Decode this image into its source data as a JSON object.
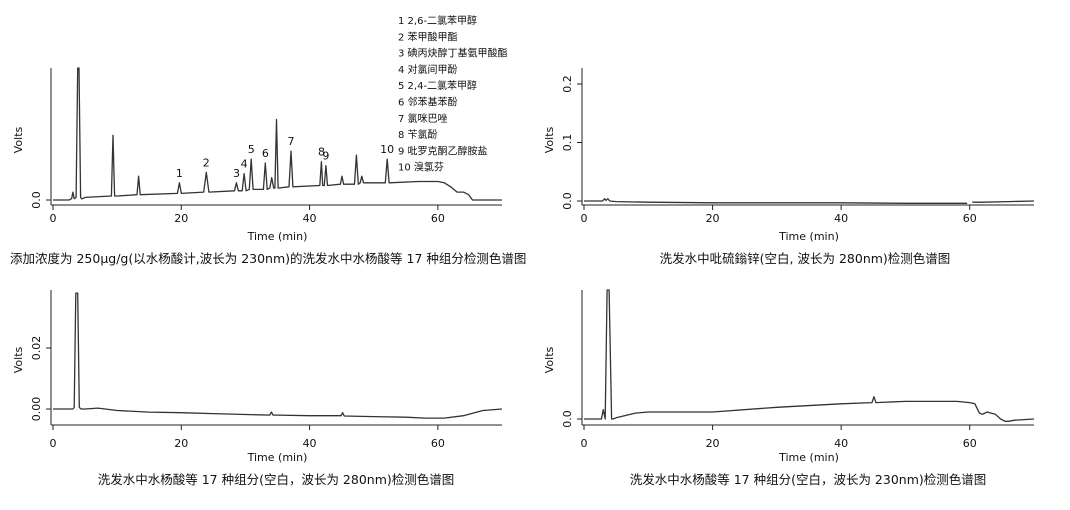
{
  "chart_data": [
    {
      "type": "line",
      "caption": "添加浓度为 250μg/g(以水杨酸计,波长为 230nm)的洗发水中水杨酸等 17 种组分检测色谱图",
      "xlabel": "Time (min)",
      "ylabel": "Volts",
      "xlim": [
        0,
        70
      ],
      "ylim": [
        -0.005,
        0.1
      ],
      "xticks": [
        0,
        20,
        40,
        60
      ],
      "yticks": [
        0.0
      ],
      "ytick_labels": [
        "0.0"
      ],
      "series": [
        {
          "x": [
            0,
            2.5,
            2.9,
            3.1,
            3.3,
            3.6,
            3.85,
            3.95,
            4.05,
            4.3,
            4.45,
            4.6,
            5,
            9.1,
            9.35,
            9.6,
            10,
            13.1,
            13.35,
            13.6,
            19.4,
            19.7,
            20,
            23.5,
            23.9,
            24.3,
            28.3,
            28.6,
            28.9,
            29.5,
            29.8,
            30.1,
            30.6,
            30.9,
            31.2,
            32.8,
            33.1,
            33.4,
            33.8,
            34.1,
            34.4,
            34.6,
            34.85,
            35.1,
            36.8,
            37.1,
            37.4,
            41.6,
            41.85,
            42.05,
            42.3,
            42.55,
            42.8,
            44.8,
            45.05,
            45.3,
            47,
            47.3,
            47.6,
            47.9,
            48.15,
            48.4,
            51.8,
            52.1,
            52.4,
            57,
            60,
            61,
            62,
            63,
            64,
            64.8,
            65.4,
            66,
            67,
            70
          ],
          "y": [
            0,
            0,
            0.001,
            0.006,
            0.001,
            0.002,
            0.1,
            0.1,
            0.1,
            0.002,
            0.001,
            0.001,
            0.002,
            0.003,
            0.049,
            0.003,
            0.003,
            0.004,
            0.018,
            0.004,
            0.005,
            0.013,
            0.005,
            0.006,
            0.021,
            0.006,
            0.007,
            0.013,
            0.007,
            0.007,
            0.02,
            0.007,
            0.008,
            0.031,
            0.008,
            0.008,
            0.028,
            0.008,
            0.009,
            0.017,
            0.009,
            0.009,
            0.061,
            0.009,
            0.01,
            0.037,
            0.01,
            0.011,
            0.029,
            0.011,
            0.011,
            0.026,
            0.011,
            0.012,
            0.018,
            0.012,
            0.012,
            0.034,
            0.012,
            0.013,
            0.018,
            0.013,
            0.013,
            0.031,
            0.013,
            0.014,
            0.014,
            0.013,
            0.01,
            0.006,
            0.006,
            0.004,
            0.0,
            0.0,
            0.0,
            0.0
          ]
        }
      ],
      "peak_labels": [
        {
          "text": "1",
          "x": 19.7,
          "y": 0.013
        },
        {
          "text": "2",
          "x": 23.9,
          "y": 0.021
        },
        {
          "text": "3",
          "x": 28.6,
          "y": 0.013
        },
        {
          "text": "4",
          "x": 29.8,
          "y": 0.02
        },
        {
          "text": "5",
          "x": 30.9,
          "y": 0.031
        },
        {
          "text": "6",
          "x": 33.1,
          "y": 0.028
        },
        {
          "text": "7",
          "x": 37.1,
          "y": 0.037
        },
        {
          "text": "8",
          "x": 41.85,
          "y": 0.029
        },
        {
          "text": "9",
          "x": 42.55,
          "y": 0.026
        },
        {
          "text": "10",
          "x": 52.1,
          "y": 0.031
        }
      ],
      "legend": [
        "1 2,6-二氯苯甲醇",
        "2 苯甲酸甲酯",
        "3 碘丙炔醇丁基氨甲酸酯",
        "4 对氯间甲酚",
        "5 2,4-二氯苯甲醇",
        "6 邻苯基苯酚",
        "7 氯咪巴唑",
        "8 苄氯酚",
        "9 吡罗克酮乙醇胺盐",
        "10 溴氯芬"
      ]
    },
    {
      "type": "line",
      "caption": "洗发水中吡硫鎓锌(空白, 波长为 280nm)检测色谱图",
      "xlabel": "Time (min)",
      "ylabel": "Volts",
      "xlim": [
        0,
        70
      ],
      "ylim": [
        -0.01,
        0.22
      ],
      "xticks": [
        0,
        20,
        40,
        60
      ],
      "yticks": [
        0.0,
        0.1,
        0.2
      ],
      "ytick_labels": [
        "0.0",
        "0.1",
        "0.2"
      ],
      "series": [
        {
          "x": [
            0,
            2.9,
            3.2,
            3.4,
            3.7,
            4,
            5,
            10,
            20,
            30,
            40,
            50,
            58,
            59.6,
            59.8,
            60.2,
            60.4,
            62,
            66,
            70
          ],
          "y": [
            0.0,
            0.0,
            0.004,
            0.001,
            0.004,
            0.0,
            -0.001,
            -0.002,
            -0.003,
            -0.003,
            -0.003,
            -0.004,
            -0.004,
            -0.004,
            null,
            null,
            -0.002,
            -0.002,
            -0.001,
            0.0
          ]
        }
      ]
    },
    {
      "type": "line",
      "caption": "洗发水中水杨酸等 17 种组分(空白，波长为 280nm)检测色谱图",
      "xlabel": "Time (min)",
      "ylabel": "Volts",
      "xlim": [
        0,
        70
      ],
      "ylim": [
        -0.003,
        0.038
      ],
      "xticks": [
        0,
        20,
        40,
        60
      ],
      "yticks": [
        0.0,
        0.02
      ],
      "ytick_labels": [
        "0.00",
        "0.02"
      ],
      "series": [
        {
          "x": [
            0,
            2.8,
            3.1,
            3.3,
            3.55,
            3.85,
            4.1,
            4.4,
            5,
            7,
            10,
            15,
            20,
            25,
            30,
            33.8,
            34.05,
            34.3,
            35,
            40,
            44.9,
            45.15,
            45.4,
            50,
            55,
            58,
            60,
            61,
            64,
            67,
            70
          ],
          "y": [
            0.0,
            0.0,
            0.0,
            0.0005,
            0.038,
            0.038,
            0.0005,
            0.0,
            0.0,
            0.0003,
            -0.0005,
            -0.001,
            -0.0012,
            -0.0015,
            -0.0018,
            -0.002,
            -0.001,
            -0.002,
            -0.002,
            -0.0022,
            -0.0022,
            -0.0012,
            -0.0023,
            -0.0025,
            -0.0027,
            -0.003,
            -0.0045,
            -0.003,
            -0.0022,
            -0.0005,
            0.0
          ]
        }
      ]
    },
    {
      "type": "line",
      "caption": "洗发水中水杨酸等 17 种组分(空白，波长为 230nm)检测色谱图",
      "xlabel": "Time (min)",
      "ylabel": "Volts",
      "xlim": [
        0,
        70
      ],
      "ylim": [
        -0.006,
        0.11
      ],
      "xticks": [
        0,
        20,
        40,
        60
      ],
      "yticks": [
        0.0
      ],
      "ytick_labels": [
        "0.0"
      ],
      "series": [
        {
          "x": [
            0,
            2.7,
            3.0,
            3.3,
            3.6,
            3.9,
            4.3,
            4.5,
            5,
            8,
            10,
            15,
            20,
            30,
            40,
            44.8,
            45.1,
            45.4,
            50,
            55,
            58,
            60,
            60.8,
            61.5,
            62,
            62.7,
            63.3,
            64,
            64.8,
            65.5,
            66,
            67,
            70
          ],
          "y": [
            0.0,
            0.0,
            0.008,
            0.0,
            0.11,
            0.11,
            0.0,
            0.0,
            0.001,
            0.005,
            0.006,
            0.006,
            0.006,
            0.01,
            0.013,
            0.014,
            0.019,
            0.014,
            0.015,
            0.015,
            0.015,
            0.014,
            0.013,
            0.005,
            0.004,
            0.006,
            0.005,
            0.004,
            0.0,
            -0.002,
            -0.002,
            -0.001,
            0.0
          ]
        }
      ]
    }
  ]
}
